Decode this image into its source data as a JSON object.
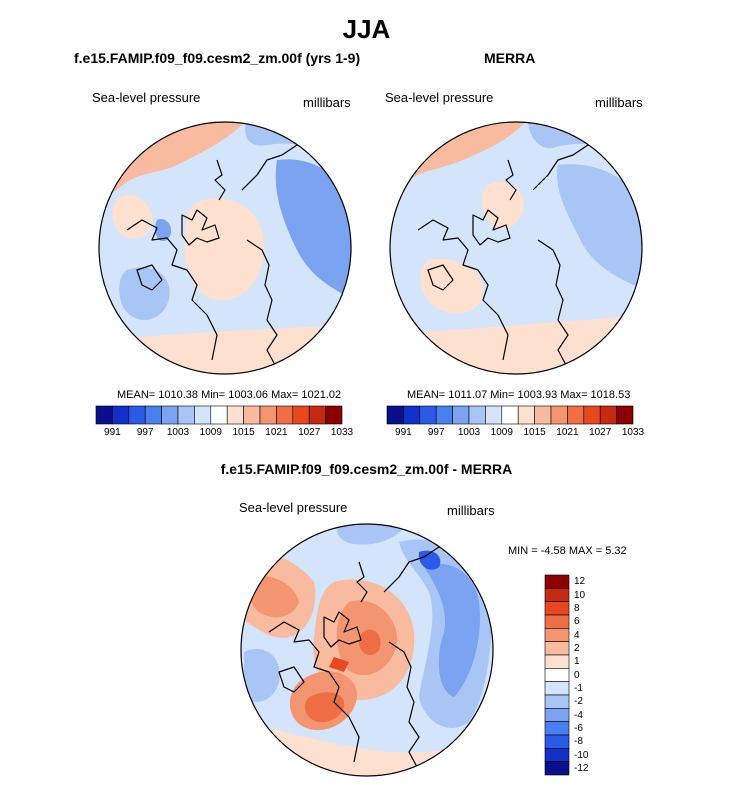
{
  "title": "JJA",
  "panels": [
    {
      "title": "f.e15.FAMIP.f09_f09.cesm2_zm.00f (yrs 1-9)",
      "variable": "Sea-level pressure",
      "units": "millibars",
      "stats": "MEAN= 1010.38  Min= 1003.06  Max= 1021.02"
    },
    {
      "title": "MERRA",
      "variable": "Sea-level pressure",
      "units": "millibars",
      "stats": "MEAN= 1011.07  Min= 1003.93  Max= 1018.53"
    },
    {
      "title": "f.e15.FAMIP.f09_f09.cesm2_zm.00f - MERRA",
      "variable": "Sea-level pressure",
      "units": "millibars",
      "stats": "MIN =  -4.58 MAX =   5.32"
    }
  ],
  "colorbars": {
    "absolute_colors": [
      "#0a0f8c",
      "#1030c8",
      "#2a5ae6",
      "#4a7ff0",
      "#7ba3f2",
      "#a9c5f5",
      "#d4e4fb",
      "#ffffff",
      "#fde0cf",
      "#f8bba0",
      "#f49572",
      "#f06e45",
      "#e8481f",
      "#c52b10",
      "#8b0000"
    ],
    "absolute_labels": [
      "991",
      "997",
      "1003",
      "1009",
      "1015",
      "1021",
      "1027",
      "1033"
    ],
    "difference_colors": [
      "#0a0f8c",
      "#1030c8",
      "#2a5ae6",
      "#4a7ff0",
      "#7ba3f2",
      "#a9c5f5",
      "#d4e4fb",
      "#ffffff",
      "#fde0cf",
      "#f8bba0",
      "#f49572",
      "#f06e45",
      "#e8481f",
      "#c52b10",
      "#8b0000"
    ],
    "difference_labels": [
      "12",
      "10",
      "8",
      "6",
      "4",
      "2",
      "1",
      "0",
      "-1",
      "-2",
      "-4",
      "-6",
      "-8",
      "-10",
      "-12"
    ]
  },
  "chart_data": [
    {
      "type": "heatmap",
      "title": "f.e15.FAMIP.f09_f09.cesm2_zm.00f (yrs 1-9)",
      "subtitle": "Sea-level pressure",
      "units": "millibars",
      "projection": "polar stereographic (North)",
      "mean": 1010.38,
      "min": 1003.06,
      "max": 1021.02,
      "colorbar_levels": [
        991,
        997,
        1003,
        1009,
        1015,
        1021,
        1027,
        1033
      ]
    },
    {
      "type": "heatmap",
      "title": "MERRA",
      "subtitle": "Sea-level pressure",
      "units": "millibars",
      "projection": "polar stereographic (North)",
      "mean": 1011.07,
      "min": 1003.93,
      "max": 1018.53,
      "colorbar_levels": [
        991,
        997,
        1003,
        1009,
        1015,
        1021,
        1027,
        1033
      ]
    },
    {
      "type": "heatmap",
      "title": "f.e15.FAMIP.f09_f09.cesm2_zm.00f - MERRA",
      "subtitle": "Sea-level pressure",
      "units": "millibars",
      "projection": "polar stereographic (North)",
      "min": -4.58,
      "max": 5.32,
      "colorbar_levels": [
        -12,
        -10,
        -8,
        -6,
        -4,
        -2,
        -1,
        0,
        1,
        2,
        4,
        6,
        8,
        10,
        12
      ]
    }
  ]
}
